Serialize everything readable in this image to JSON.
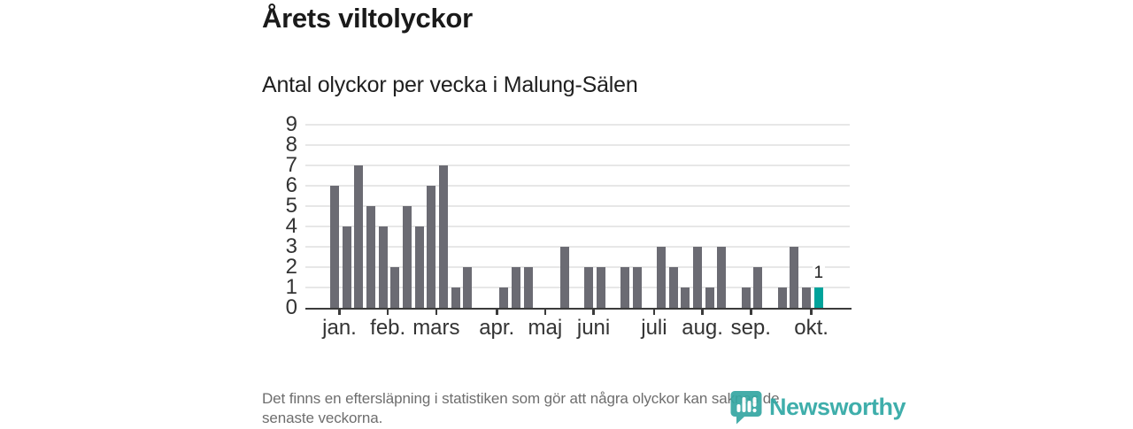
{
  "header": {
    "title": "Årets viltolyckor",
    "subtitle": "Antal olyckor per vecka i Malung-Sälen"
  },
  "footnote": {
    "line1": "Det finns en eftersläpning i statistiken som gör att några olyckor kan saknas de",
    "line2": "senaste veckorna."
  },
  "branding": {
    "name": "Newsworthy",
    "color": "#2fa8a4",
    "icon": "bar-chart-speech-bubble-icon"
  },
  "chart_data": {
    "type": "bar",
    "title": "Årets viltolyckor",
    "subtitle": "Antal olyckor per vecka i Malung-Sälen",
    "x_unit": "vecka (week of year)",
    "xlabel": "",
    "ylabel": "Antal olyckor",
    "ylim": [
      0,
      9
    ],
    "yticks": [
      0,
      1,
      2,
      3,
      4,
      5,
      6,
      7,
      8,
      9
    ],
    "grid": true,
    "values": [
      6,
      4,
      7,
      5,
      4,
      2,
      5,
      4,
      6,
      7,
      1,
      2,
      0,
      0,
      1,
      2,
      2,
      0,
      0,
      3,
      0,
      2,
      2,
      0,
      2,
      2,
      0,
      3,
      2,
      1,
      3,
      1,
      3,
      0,
      1,
      2,
      0,
      1,
      3,
      1,
      1
    ],
    "first_week": 1,
    "highlight_index": 40,
    "highlight_label": "1",
    "bar_color": "#6b6b73",
    "highlight_color": "#00a39b",
    "months": [
      {
        "label": "jan.",
        "week": 1
      },
      {
        "label": "feb.",
        "week": 5
      },
      {
        "label": "mars",
        "week": 9
      },
      {
        "label": "apr.",
        "week": 14
      },
      {
        "label": "maj",
        "week": 18
      },
      {
        "label": "juni",
        "week": 22
      },
      {
        "label": "juli",
        "week": 27
      },
      {
        "label": "aug.",
        "week": 31
      },
      {
        "label": "sep.",
        "week": 35
      },
      {
        "label": "okt.",
        "week": 40
      }
    ],
    "legend_position": "none"
  }
}
